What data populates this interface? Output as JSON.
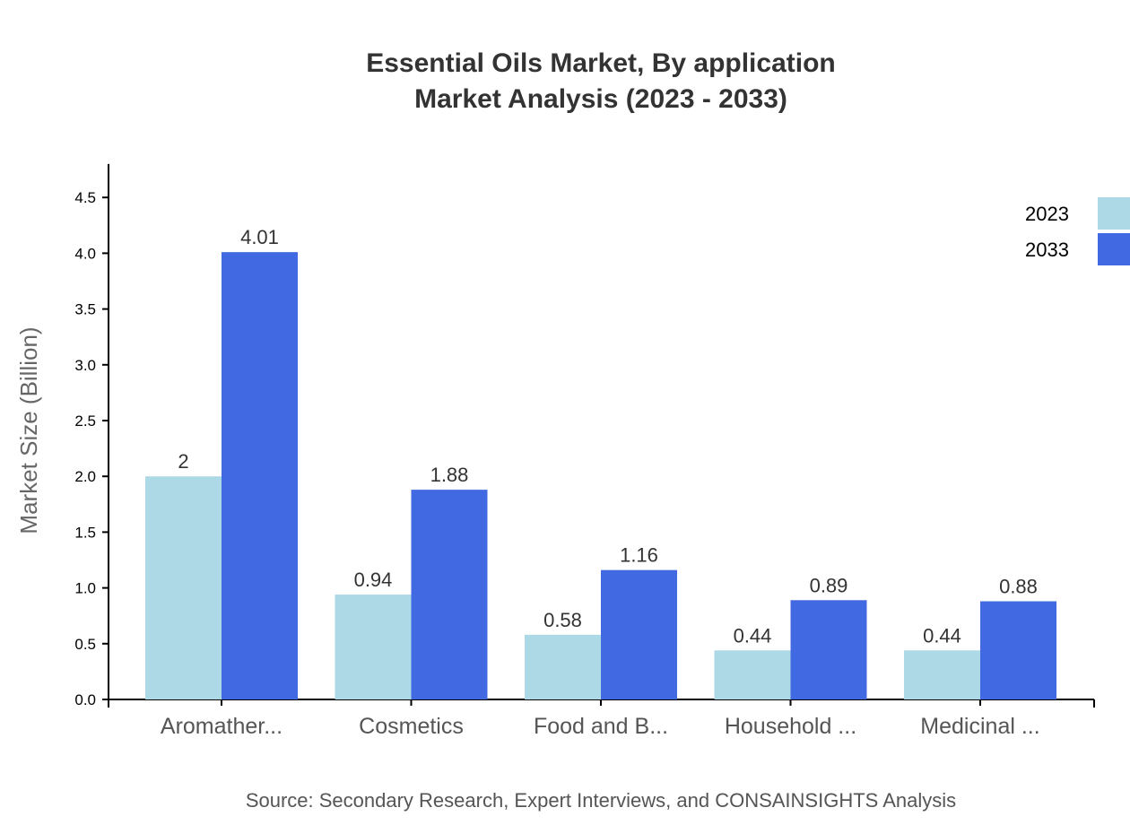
{
  "chart_data": {
    "type": "bar",
    "title": [
      "Essential Oils Market, By application",
      "Market Analysis (2023 - 2033)"
    ],
    "xlabel": "",
    "ylabel": "Market Size (Billion)",
    "categories": [
      "Aromather...",
      "Cosmetics",
      "Food and B...",
      "Household ...",
      "Medicinal ..."
    ],
    "series": [
      {
        "name": "2023",
        "color": "#ADD8E6",
        "values": [
          2,
          0.94,
          0.58,
          0.44,
          0.44
        ],
        "labels": [
          "2",
          "0.94",
          "0.58",
          "0.44",
          "0.44"
        ]
      },
      {
        "name": "2033",
        "color": "#4169E1",
        "values": [
          4.01,
          1.88,
          1.16,
          0.89,
          0.88
        ],
        "labels": [
          "4.01",
          "1.88",
          "1.16",
          "0.89",
          "0.88"
        ]
      }
    ],
    "yticks": [
      "0.0",
      "0.5",
      "1.0",
      "1.5",
      "2.0",
      "2.5",
      "3.0",
      "3.5",
      "4.0",
      "4.5"
    ],
    "ylim": [
      0,
      4.8
    ],
    "grid": false,
    "legend": "top-right",
    "source": "Source: Secondary Research, Expert Interviews, and CONSAINSIGHTS Analysis"
  }
}
